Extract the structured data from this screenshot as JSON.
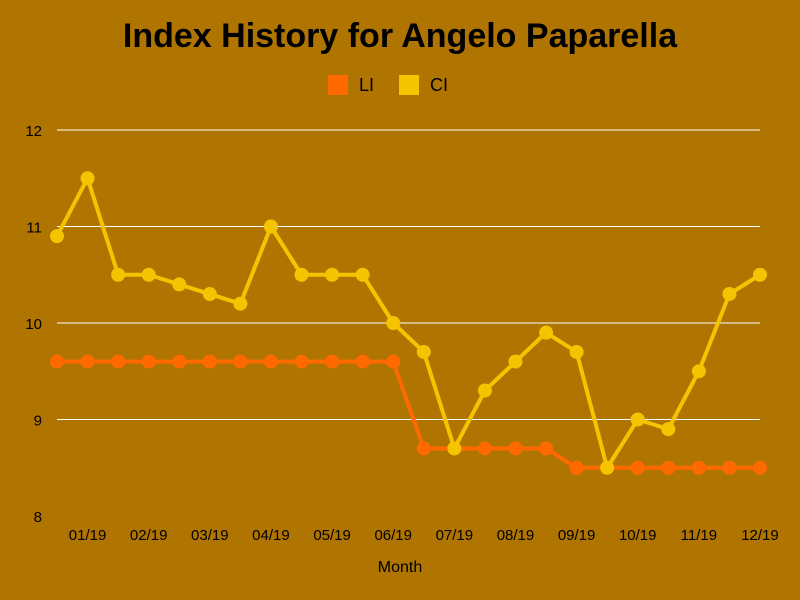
{
  "chart_data": {
    "type": "line",
    "title": "Index History for Angelo Paparella",
    "xlabel": "Month",
    "ylabel": "",
    "ylim": [
      8,
      12
    ],
    "y_ticks": [
      "8",
      "9",
      "10",
      "11",
      "12"
    ],
    "x_tick_labels": [
      "01/19",
      "02/19",
      "03/19",
      "04/19",
      "05/19",
      "06/19",
      "07/19",
      "08/19",
      "09/19",
      "10/19",
      "11/19",
      "12/19"
    ],
    "grid": true,
    "legend_position": "top-center",
    "series": [
      {
        "name": "LI",
        "color": "#ff6a00",
        "values": [
          9.6,
          9.6,
          9.6,
          9.6,
          9.6,
          9.6,
          9.6,
          9.6,
          9.6,
          9.6,
          9.6,
          9.6,
          8.7,
          8.7,
          8.7,
          8.7,
          8.7,
          8.5,
          8.5,
          8.5,
          8.5,
          8.5,
          8.5,
          8.5
        ]
      },
      {
        "name": "CI",
        "color": "#f5c400",
        "values": [
          10.9,
          11.5,
          10.5,
          10.5,
          10.4,
          10.3,
          10.2,
          11.0,
          10.5,
          10.5,
          10.5,
          10.0,
          9.7,
          8.7,
          9.3,
          9.6,
          9.9,
          9.7,
          8.5,
          9.0,
          8.9,
          9.5,
          10.3,
          10.5
        ]
      }
    ]
  }
}
